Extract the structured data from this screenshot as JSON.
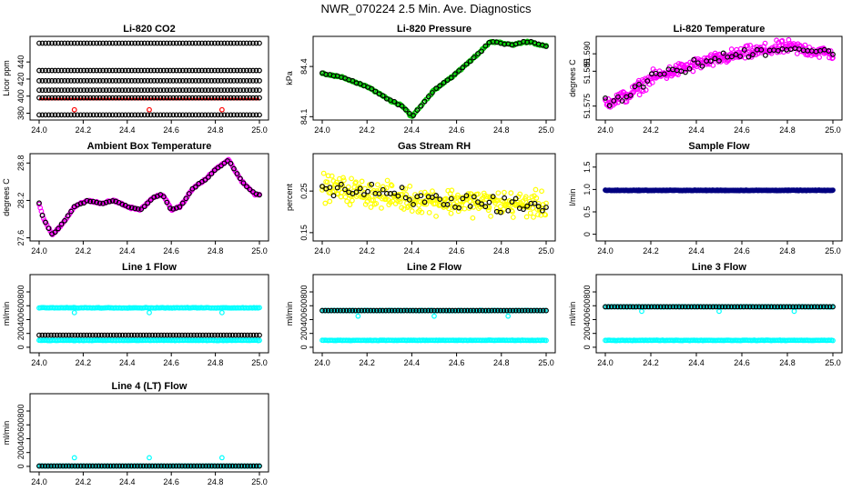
{
  "page": {
    "title": "NWR_070224  2.5 Min. Ave. Diagnostics"
  },
  "colors": {
    "black": "#000000",
    "red": "#ff0000",
    "green": "#00cc00",
    "magenta": "#ff00ff",
    "yellow": "#ffff00",
    "cyan": "#00ffff",
    "navy": "#000080"
  },
  "chart_data": [
    {
      "id": "co2",
      "type": "scatter",
      "title": "Li-820 CO2",
      "ylabel": "Licor ppm",
      "xlim": [
        24.0,
        25.0
      ],
      "ylim": [
        372,
        470
      ],
      "xticks": [
        "24.0",
        "24.2",
        "24.4",
        "24.6",
        "24.8",
        "25.0"
      ],
      "xtick_values": [
        24.0,
        24.2,
        24.4,
        24.6,
        24.8,
        25.0
      ],
      "yticks": [
        "380",
        "400",
        "420",
        "440"
      ],
      "ytick_values": [
        380,
        400,
        420,
        440
      ],
      "series": [
        {
          "name": "red",
          "color": "#ff0000",
          "kind": "band",
          "start": 395,
          "end": 398
        },
        {
          "name": "red-outliers",
          "color": "#ff0000",
          "kind": "points",
          "x": [
            24.16,
            24.5,
            24.83
          ],
          "y": [
            384,
            384,
            384
          ]
        },
        {
          "name": "black",
          "color": "#000000",
          "kind": "levels",
          "levels": [
            378,
            398,
            407,
            418,
            430,
            462
          ],
          "count": 70
        }
      ]
    },
    {
      "id": "pressure",
      "type": "scatter",
      "title": "Li-820 Pressure",
      "ylabel": "kPa",
      "xlim": [
        24.0,
        25.0
      ],
      "ylim": [
        84.08,
        84.58
      ],
      "xticks": [
        "24.0",
        "24.2",
        "24.4",
        "24.6",
        "24.8",
        "25.0"
      ],
      "xtick_values": [
        24.0,
        24.2,
        24.4,
        24.6,
        24.8,
        25.0
      ],
      "yticks": [
        "84.1",
        "84.4"
      ],
      "ytick_values": [
        84.1,
        84.4
      ],
      "series": [
        {
          "name": "green",
          "color": "#00cc00",
          "kind": "track",
          "x": [
            24.0,
            24.1,
            24.2,
            24.3,
            24.36,
            24.4,
            24.5,
            24.6,
            24.7,
            24.75,
            24.85,
            24.92,
            25.0
          ],
          "y": [
            84.36,
            84.33,
            84.28,
            84.2,
            84.16,
            84.1,
            84.26,
            84.36,
            84.48,
            84.55,
            84.53,
            84.55,
            84.52
          ],
          "count": 180,
          "noise": 0.008
        },
        {
          "name": "black",
          "color": "#000000",
          "kind": "track-sample",
          "count": 60
        }
      ]
    },
    {
      "id": "licor-temp",
      "type": "scatter",
      "title": "Li-820 Temperature",
      "ylabel": "degrees C",
      "xlim": [
        24.0,
        25.0
      ],
      "ylim": [
        51.571,
        51.595
      ],
      "xticks": [
        "24.0",
        "24.2",
        "24.4",
        "24.6",
        "24.8",
        "25.0"
      ],
      "xtick_values": [
        24.0,
        24.2,
        24.4,
        24.6,
        24.8,
        25.0
      ],
      "yticks": [
        "51.575",
        "51.585",
        "51.590"
      ],
      "ytick_values": [
        51.575,
        51.585,
        51.59
      ],
      "series": [
        {
          "name": "magenta",
          "color": "#ff00ff",
          "kind": "track",
          "x": [
            24.0,
            24.1,
            24.2,
            24.3,
            24.4,
            24.6,
            24.8,
            25.0
          ],
          "y": [
            51.576,
            51.578,
            51.583,
            51.585,
            51.587,
            51.59,
            51.592,
            51.59
          ],
          "count": 320,
          "noise": 0.0028
        },
        {
          "name": "black",
          "color": "#000000",
          "kind": "track-sample",
          "count": 55
        }
      ]
    },
    {
      "id": "box-temp",
      "type": "scatter",
      "title": "Ambient Box Temperature",
      "ylabel": "degrees C",
      "xlim": [
        24.0,
        25.0
      ],
      "ylim": [
        27.55,
        28.95
      ],
      "xticks": [
        "24.0",
        "24.2",
        "24.4",
        "24.6",
        "24.8",
        "25.0"
      ],
      "xtick_values": [
        24.0,
        24.2,
        24.4,
        24.6,
        24.8,
        25.0
      ],
      "yticks": [
        "27.6",
        "28.2",
        "28.8"
      ],
      "ytick_values": [
        27.6,
        28.2,
        28.8
      ],
      "series": [
        {
          "name": "magenta",
          "color": "#ff00ff",
          "kind": "track",
          "x": [
            24.0,
            24.02,
            24.06,
            24.1,
            24.16,
            24.22,
            24.28,
            24.34,
            24.4,
            24.46,
            24.52,
            24.56,
            24.6,
            24.64,
            24.7,
            24.76,
            24.8,
            24.86,
            24.92,
            24.98
          ],
          "y": [
            28.15,
            27.9,
            27.65,
            27.8,
            28.1,
            28.2,
            28.15,
            28.2,
            28.1,
            28.05,
            28.25,
            28.3,
            28.05,
            28.1,
            28.4,
            28.55,
            28.7,
            28.85,
            28.5,
            28.3
          ],
          "count": 200,
          "noise": 0.02
        },
        {
          "name": "black",
          "color": "#000000",
          "kind": "track-sample",
          "count": 70
        }
      ]
    },
    {
      "id": "rh",
      "type": "scatter",
      "title": "Gas Stream RH",
      "ylabel": "percent",
      "xlim": [
        24.0,
        25.0
      ],
      "ylim": [
        0.13,
        0.34
      ],
      "xticks": [
        "24.0",
        "24.2",
        "24.4",
        "24.6",
        "24.8",
        "25.0"
      ],
      "xtick_values": [
        24.0,
        24.2,
        24.4,
        24.6,
        24.8,
        25.0
      ],
      "yticks": [
        "0.15",
        "0.25"
      ],
      "ytick_values": [
        0.15,
        0.25
      ],
      "series": [
        {
          "name": "yellow",
          "color": "#ffff00",
          "kind": "track",
          "x": [
            24.0,
            24.2,
            24.4,
            24.6,
            24.8,
            25.0
          ],
          "y": [
            0.26,
            0.245,
            0.23,
            0.225,
            0.22,
            0.215
          ],
          "count": 300,
          "noise": 0.045
        },
        {
          "name": "black",
          "color": "#000000",
          "kind": "track-sample",
          "count": 60
        }
      ]
    },
    {
      "id": "sample-flow",
      "type": "scatter",
      "title": "Sample Flow",
      "ylabel": "l/min",
      "xlim": [
        24.0,
        25.0
      ],
      "ylim": [
        -0.15,
        1.8
      ],
      "xticks": [
        "24.0",
        "24.2",
        "24.4",
        "24.6",
        "24.8",
        "25.0"
      ],
      "xtick_values": [
        24.0,
        24.2,
        24.4,
        24.6,
        24.8,
        25.0
      ],
      "yticks": [
        "0",
        "0.5",
        "1.0",
        "1.5"
      ],
      "ytick_values": [
        0,
        0.5,
        1.0,
        1.5
      ],
      "series": [
        {
          "name": "navy",
          "color": "#000080",
          "kind": "levels",
          "levels": [
            0.98
          ],
          "count": 300,
          "noise": 0.01
        }
      ]
    },
    {
      "id": "line1",
      "type": "scatter",
      "title": "Line 1 Flow",
      "ylabel": "ml/min",
      "xlim": [
        24.0,
        25.0
      ],
      "ylim": [
        -80,
        1050
      ],
      "xticks": [
        "24.0",
        "24.2",
        "24.4",
        "24.6",
        "24.8",
        "25.0"
      ],
      "xtick_values": [
        24.0,
        24.2,
        24.4,
        24.6,
        24.8,
        25.0
      ],
      "yticks": [
        "0",
        "200",
        "400",
        "600",
        "800"
      ],
      "ytick_values": [
        0,
        200,
        400,
        600,
        800
      ],
      "series": [
        {
          "name": "cyan",
          "color": "#00ffff",
          "kind": "levels",
          "levels": [
            100,
            570
          ],
          "count": 160,
          "noise": 6
        },
        {
          "name": "cyan-outliers",
          "color": "#00ffff",
          "kind": "points",
          "x": [
            24.16,
            24.5,
            24.83
          ],
          "y": [
            500,
            500,
            500
          ]
        },
        {
          "name": "black",
          "color": "#000000",
          "kind": "levels",
          "levels": [
            175
          ],
          "count": 75
        }
      ]
    },
    {
      "id": "line2",
      "type": "scatter",
      "title": "Line 2 Flow",
      "ylabel": "ml/min",
      "xlim": [
        24.0,
        25.0
      ],
      "ylim": [
        -80,
        1050
      ],
      "xticks": [
        "24.0",
        "24.2",
        "24.4",
        "24.6",
        "24.8",
        "25.0"
      ],
      "xtick_values": [
        24.0,
        24.2,
        24.4,
        24.6,
        24.8,
        25.0
      ],
      "yticks": [
        "0",
        "200",
        "400",
        "600",
        "800"
      ],
      "ytick_values": [
        0,
        200,
        400,
        600,
        800
      ],
      "series": [
        {
          "name": "cyan",
          "color": "#00ffff",
          "kind": "levels",
          "levels": [
            100,
            530
          ],
          "count": 160,
          "noise": 5
        },
        {
          "name": "cyan-outliers",
          "color": "#00ffff",
          "kind": "points",
          "x": [
            24.16,
            24.5,
            24.83
          ],
          "y": [
            450,
            450,
            450
          ]
        },
        {
          "name": "black",
          "color": "#000000",
          "kind": "levels",
          "levels": [
            530
          ],
          "count": 75
        }
      ]
    },
    {
      "id": "line3",
      "type": "scatter",
      "title": "Line 3 Flow",
      "ylabel": "ml/min",
      "xlim": [
        24.0,
        25.0
      ],
      "ylim": [
        -80,
        1050
      ],
      "xticks": [
        "24.0",
        "24.2",
        "24.4",
        "24.6",
        "24.8",
        "25.0"
      ],
      "xtick_values": [
        24.0,
        24.2,
        24.4,
        24.6,
        24.8,
        25.0
      ],
      "yticks": [
        "0",
        "200",
        "400",
        "600",
        "800"
      ],
      "ytick_values": [
        0,
        200,
        400,
        600,
        800
      ],
      "series": [
        {
          "name": "cyan",
          "color": "#00ffff",
          "kind": "levels",
          "levels": [
            100,
            585
          ],
          "count": 160,
          "noise": 5
        },
        {
          "name": "cyan-outliers",
          "color": "#00ffff",
          "kind": "points",
          "x": [
            24.16,
            24.5,
            24.83
          ],
          "y": [
            520,
            520,
            520
          ]
        },
        {
          "name": "black",
          "color": "#000000",
          "kind": "levels",
          "levels": [
            585
          ],
          "count": 75
        }
      ]
    },
    {
      "id": "line4",
      "type": "scatter",
      "title": "Line 4 (LT) Flow",
      "ylabel": "ml/min",
      "xlim": [
        24.0,
        25.0
      ],
      "ylim": [
        -80,
        1050
      ],
      "xticks": [
        "24.0",
        "24.2",
        "24.4",
        "24.6",
        "24.8",
        "25.0"
      ],
      "xtick_values": [
        24.0,
        24.2,
        24.4,
        24.6,
        24.8,
        25.0
      ],
      "yticks": [
        "0",
        "200",
        "400",
        "600",
        "800"
      ],
      "ytick_values": [
        0,
        200,
        400,
        600,
        800
      ],
      "series": [
        {
          "name": "cyan",
          "color": "#00ffff",
          "kind": "levels",
          "levels": [
            5
          ],
          "count": 160,
          "noise": 3
        },
        {
          "name": "cyan-outliers",
          "color": "#00ffff",
          "kind": "points",
          "x": [
            24.16,
            24.5,
            24.83
          ],
          "y": [
            125,
            125,
            125
          ]
        },
        {
          "name": "black",
          "color": "#000000",
          "kind": "levels",
          "levels": [
            5
          ],
          "count": 75
        }
      ]
    }
  ]
}
